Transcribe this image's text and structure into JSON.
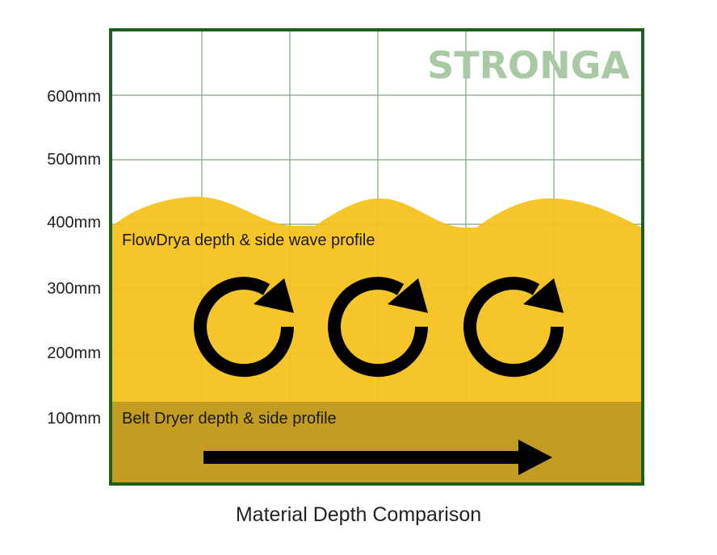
{
  "brand": "STRONGA",
  "caption": "Material Depth Comparison",
  "y_axis_labels": [
    "600mm",
    "500mm",
    "400mm",
    "300mm",
    "200mm",
    "100mm"
  ],
  "flowdrya_label": "FlowDrya depth & side wave profile",
  "belt_label": "Belt Dryer depth & side profile",
  "colors": {
    "frame": "#1c5e1c",
    "grid": "#7aa87a",
    "flowdrya_fill": "#f5c119",
    "belt_fill": "#c19b22",
    "brand": "#a9c9a4",
    "arrows": "#000000"
  },
  "icons": [
    "rotation-arrow-icon",
    "rotation-arrow-icon",
    "rotation-arrow-icon",
    "right-arrow-icon"
  ]
}
